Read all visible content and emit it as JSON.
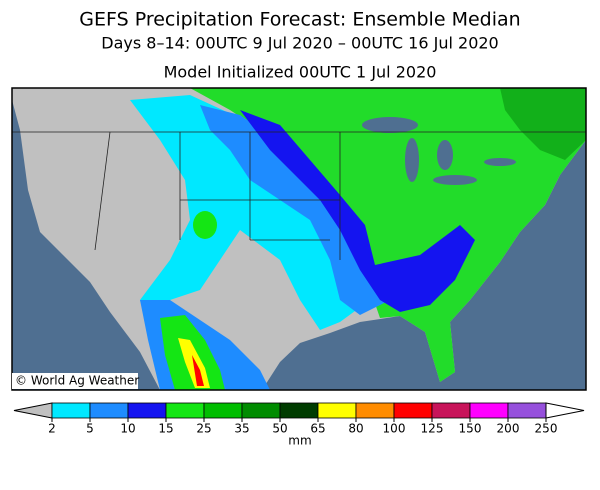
{
  "title": "GEFS Precipitation Forecast: Ensemble Median",
  "subtitle": "Days 8–14: 00UTC 9 Jul 2020 – 00UTC 16 Jul 2020",
  "init": "Model Initialized 00UTC 1 Jul 2020",
  "credit": "© World Ag Weather",
  "colorbar": {
    "ticks": [
      2,
      5,
      10,
      15,
      25,
      35,
      50,
      65,
      80,
      100,
      125,
      150,
      200,
      250
    ],
    "colors": [
      "#c0c0c0",
      "#00e8ff",
      "#1e8cff",
      "#1414f0",
      "#14e614",
      "#00be00",
      "#008c00",
      "#003c00",
      "#ffff00",
      "#ff8c00",
      "#ff0000",
      "#c8145a",
      "#ff00ff",
      "#9650dc",
      "#ffffff"
    ],
    "unit": "mm"
  }
}
